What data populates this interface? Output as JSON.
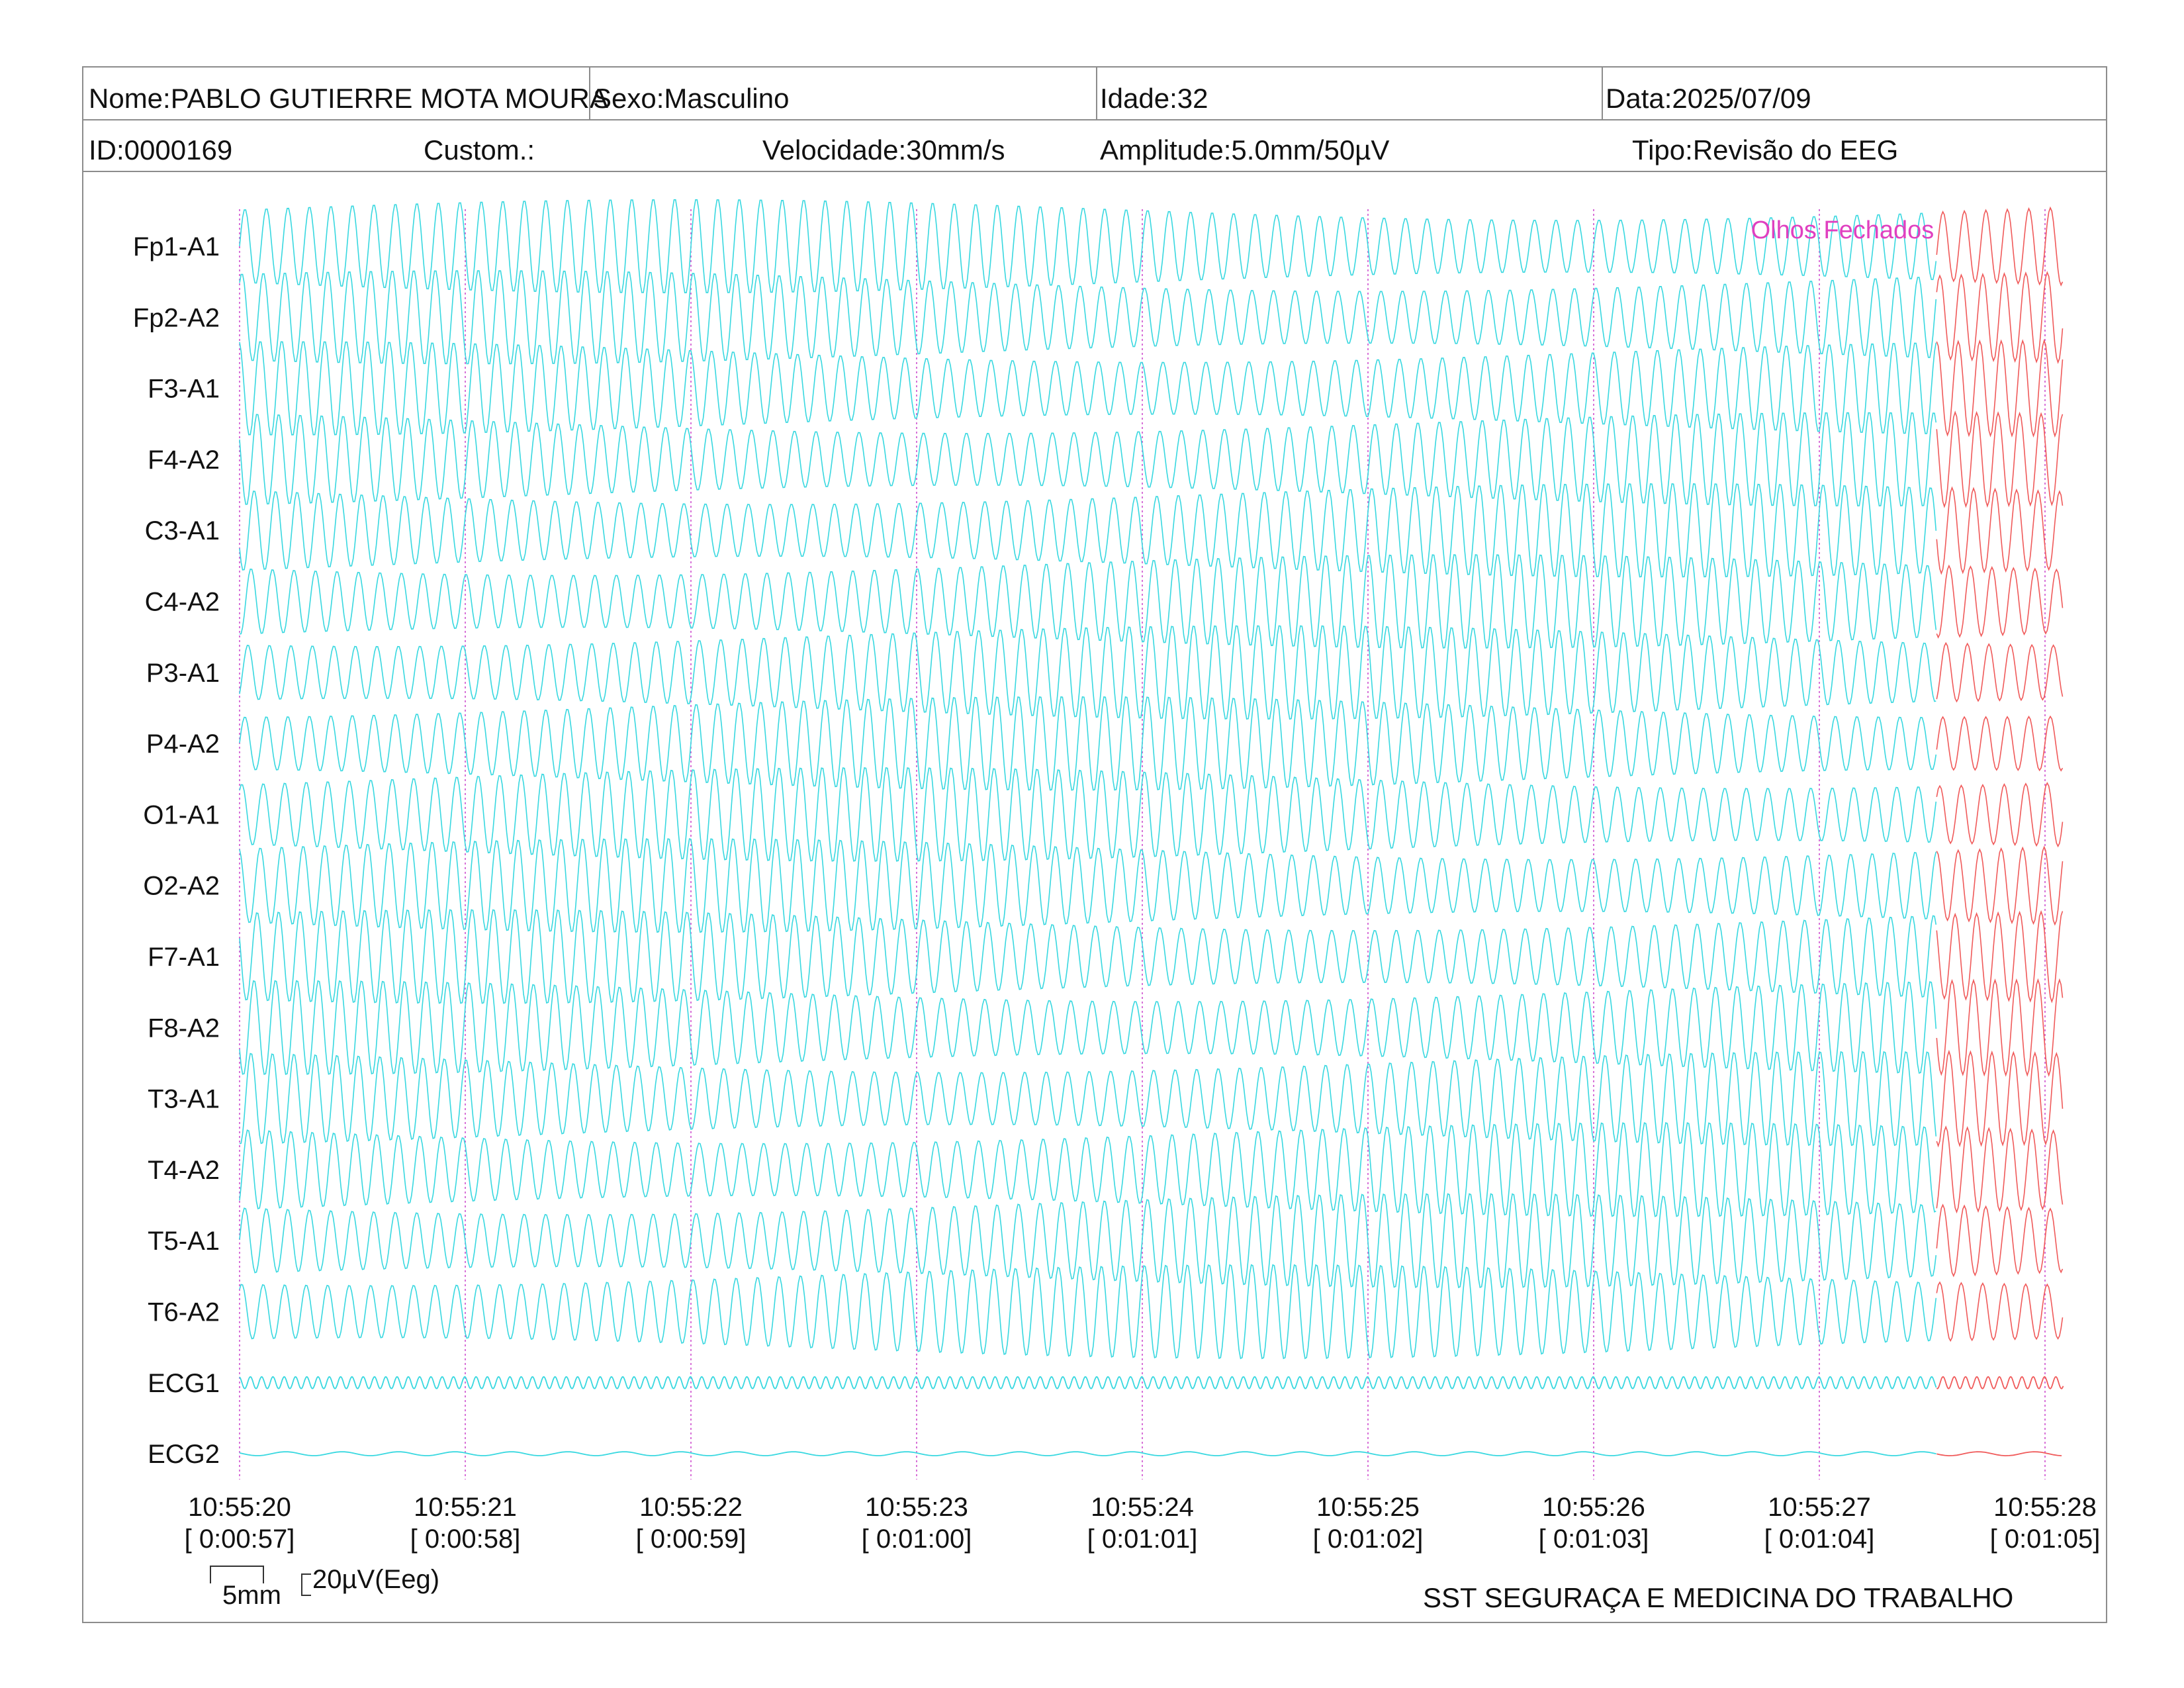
{
  "header": {
    "name": "Nome:PABLO GUTIERRE MOTA MOURA",
    "sex": "Sexo:Masculino",
    "age": "Idade:32",
    "date": "Data:2025/07/09",
    "id": "ID:0000169",
    "custom": "Custom.:",
    "speed": "Velocidade:30mm/s",
    "amplitude": "Amplitude:5.0mm/50µV",
    "type": "Tipo:Revisão do EEG"
  },
  "calibration": {
    "time_label": "5mm",
    "amp_label": "20µV(Eeg)"
  },
  "footer": {
    "org": "SST SEGURAÇA E MEDICINA DO TRABALHO"
  },
  "colors": {
    "trace": "#38d8e0",
    "marked_trace": "#f05a5a",
    "grid": "#cc44cc",
    "annotation": "#e040c0",
    "border": "#8c8c8c"
  },
  "chart_data": {
    "type": "line",
    "title": "",
    "xlabel": "",
    "ylabel": "",
    "channels": [
      "Fp1-A1",
      "Fp2-A2",
      "F3-A1",
      "F4-A2",
      "C3-A1",
      "C4-A2",
      "P3-A1",
      "P4-A2",
      "O1-A1",
      "O2-A2",
      "F7-A1",
      "F8-A2",
      "T3-A1",
      "T4-A2",
      "T5-A1",
      "T6-A2",
      "ECG1",
      "ECG2"
    ],
    "x_ticks": [
      {
        "time": "10:55:20",
        "elapsed": "[ 0:00:57]"
      },
      {
        "time": "10:55:21",
        "elapsed": "[ 0:00:58]"
      },
      {
        "time": "10:55:22",
        "elapsed": "[ 0:00:59]"
      },
      {
        "time": "10:55:23",
        "elapsed": "[ 0:01:00]"
      },
      {
        "time": "10:55:24",
        "elapsed": "[ 0:01:01]"
      },
      {
        "time": "10:55:25",
        "elapsed": "[ 0:01:02]"
      },
      {
        "time": "10:55:26",
        "elapsed": "[ 0:01:03]"
      },
      {
        "time": "10:55:27",
        "elapsed": "[ 0:01:04]"
      },
      {
        "time": "10:55:28",
        "elapsed": "[ 0:01:05]"
      }
    ],
    "xlim_seconds": [
      0,
      8.1
    ],
    "eeg_frequency_hz": 10.5,
    "ecg1_frequency_hz": 20,
    "ecg2_frequency_hz": 4,
    "marked_segment_start_seconds": 7.52,
    "annotations": [
      {
        "text": "Olhos Fechados",
        "at_seconds": 7.52
      }
    ],
    "grid": "vertical dotted lines at each second"
  }
}
